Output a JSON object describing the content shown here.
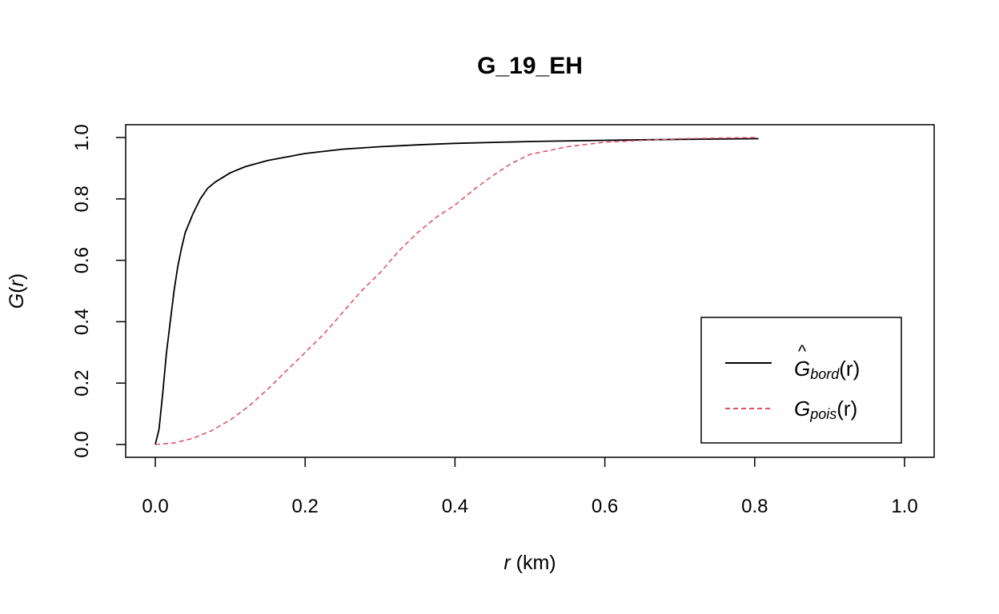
{
  "chart_data": {
    "type": "line",
    "title": "G_19_EH",
    "xlabel": {
      "var": "r",
      "unit": " (km)"
    },
    "ylabel": {
      "fn": "G",
      "open": "(",
      "var": "r",
      "close": ")"
    },
    "xlim": [
      0.0,
      1.0
    ],
    "ylim": [
      0.0,
      1.0
    ],
    "x_ticks": [
      "0.0",
      "0.2",
      "0.4",
      "0.6",
      "0.8",
      "1.0"
    ],
    "y_ticks": [
      "0.0",
      "0.2",
      "0.4",
      "0.6",
      "0.8",
      "1.0"
    ],
    "grid": false,
    "legend_position": "bottom-right",
    "series": [
      {
        "key": "bord",
        "label": {
          "fn": "G",
          "hat": "^",
          "sub": "bord",
          "arg": "(r)"
        },
        "color": "#000000",
        "dash": "solid",
        "points": [
          [
            0.0,
            0.0
          ],
          [
            0.005,
            0.05
          ],
          [
            0.01,
            0.17
          ],
          [
            0.015,
            0.3
          ],
          [
            0.02,
            0.4
          ],
          [
            0.025,
            0.5
          ],
          [
            0.03,
            0.58
          ],
          [
            0.035,
            0.64
          ],
          [
            0.04,
            0.69
          ],
          [
            0.05,
            0.75
          ],
          [
            0.06,
            0.8
          ],
          [
            0.07,
            0.835
          ],
          [
            0.08,
            0.855
          ],
          [
            0.1,
            0.885
          ],
          [
            0.12,
            0.905
          ],
          [
            0.15,
            0.925
          ],
          [
            0.2,
            0.948
          ],
          [
            0.25,
            0.962
          ],
          [
            0.3,
            0.97
          ],
          [
            0.35,
            0.976
          ],
          [
            0.4,
            0.981
          ],
          [
            0.5,
            0.987
          ],
          [
            0.6,
            0.991
          ],
          [
            0.7,
            0.994
          ],
          [
            0.8,
            0.996
          ],
          [
            0.805,
            0.996
          ]
        ]
      },
      {
        "key": "pois",
        "label": {
          "fn": "G",
          "sub": "pois",
          "arg": "(r)"
        },
        "color": "#df536b",
        "dash": "dashed",
        "points": [
          [
            0.0,
            0.0
          ],
          [
            0.025,
            0.005
          ],
          [
            0.05,
            0.02
          ],
          [
            0.075,
            0.045
          ],
          [
            0.1,
            0.08
          ],
          [
            0.125,
            0.125
          ],
          [
            0.15,
            0.18
          ],
          [
            0.175,
            0.24
          ],
          [
            0.2,
            0.3
          ],
          [
            0.225,
            0.36
          ],
          [
            0.25,
            0.43
          ],
          [
            0.275,
            0.5
          ],
          [
            0.3,
            0.56
          ],
          [
            0.325,
            0.63
          ],
          [
            0.35,
            0.69
          ],
          [
            0.375,
            0.74
          ],
          [
            0.4,
            0.78
          ],
          [
            0.425,
            0.83
          ],
          [
            0.45,
            0.875
          ],
          [
            0.475,
            0.915
          ],
          [
            0.5,
            0.945
          ],
          [
            0.55,
            0.97
          ],
          [
            0.6,
            0.985
          ],
          [
            0.7,
            0.996
          ],
          [
            0.8,
            1.0
          ],
          [
            0.805,
            1.0
          ]
        ]
      }
    ]
  }
}
